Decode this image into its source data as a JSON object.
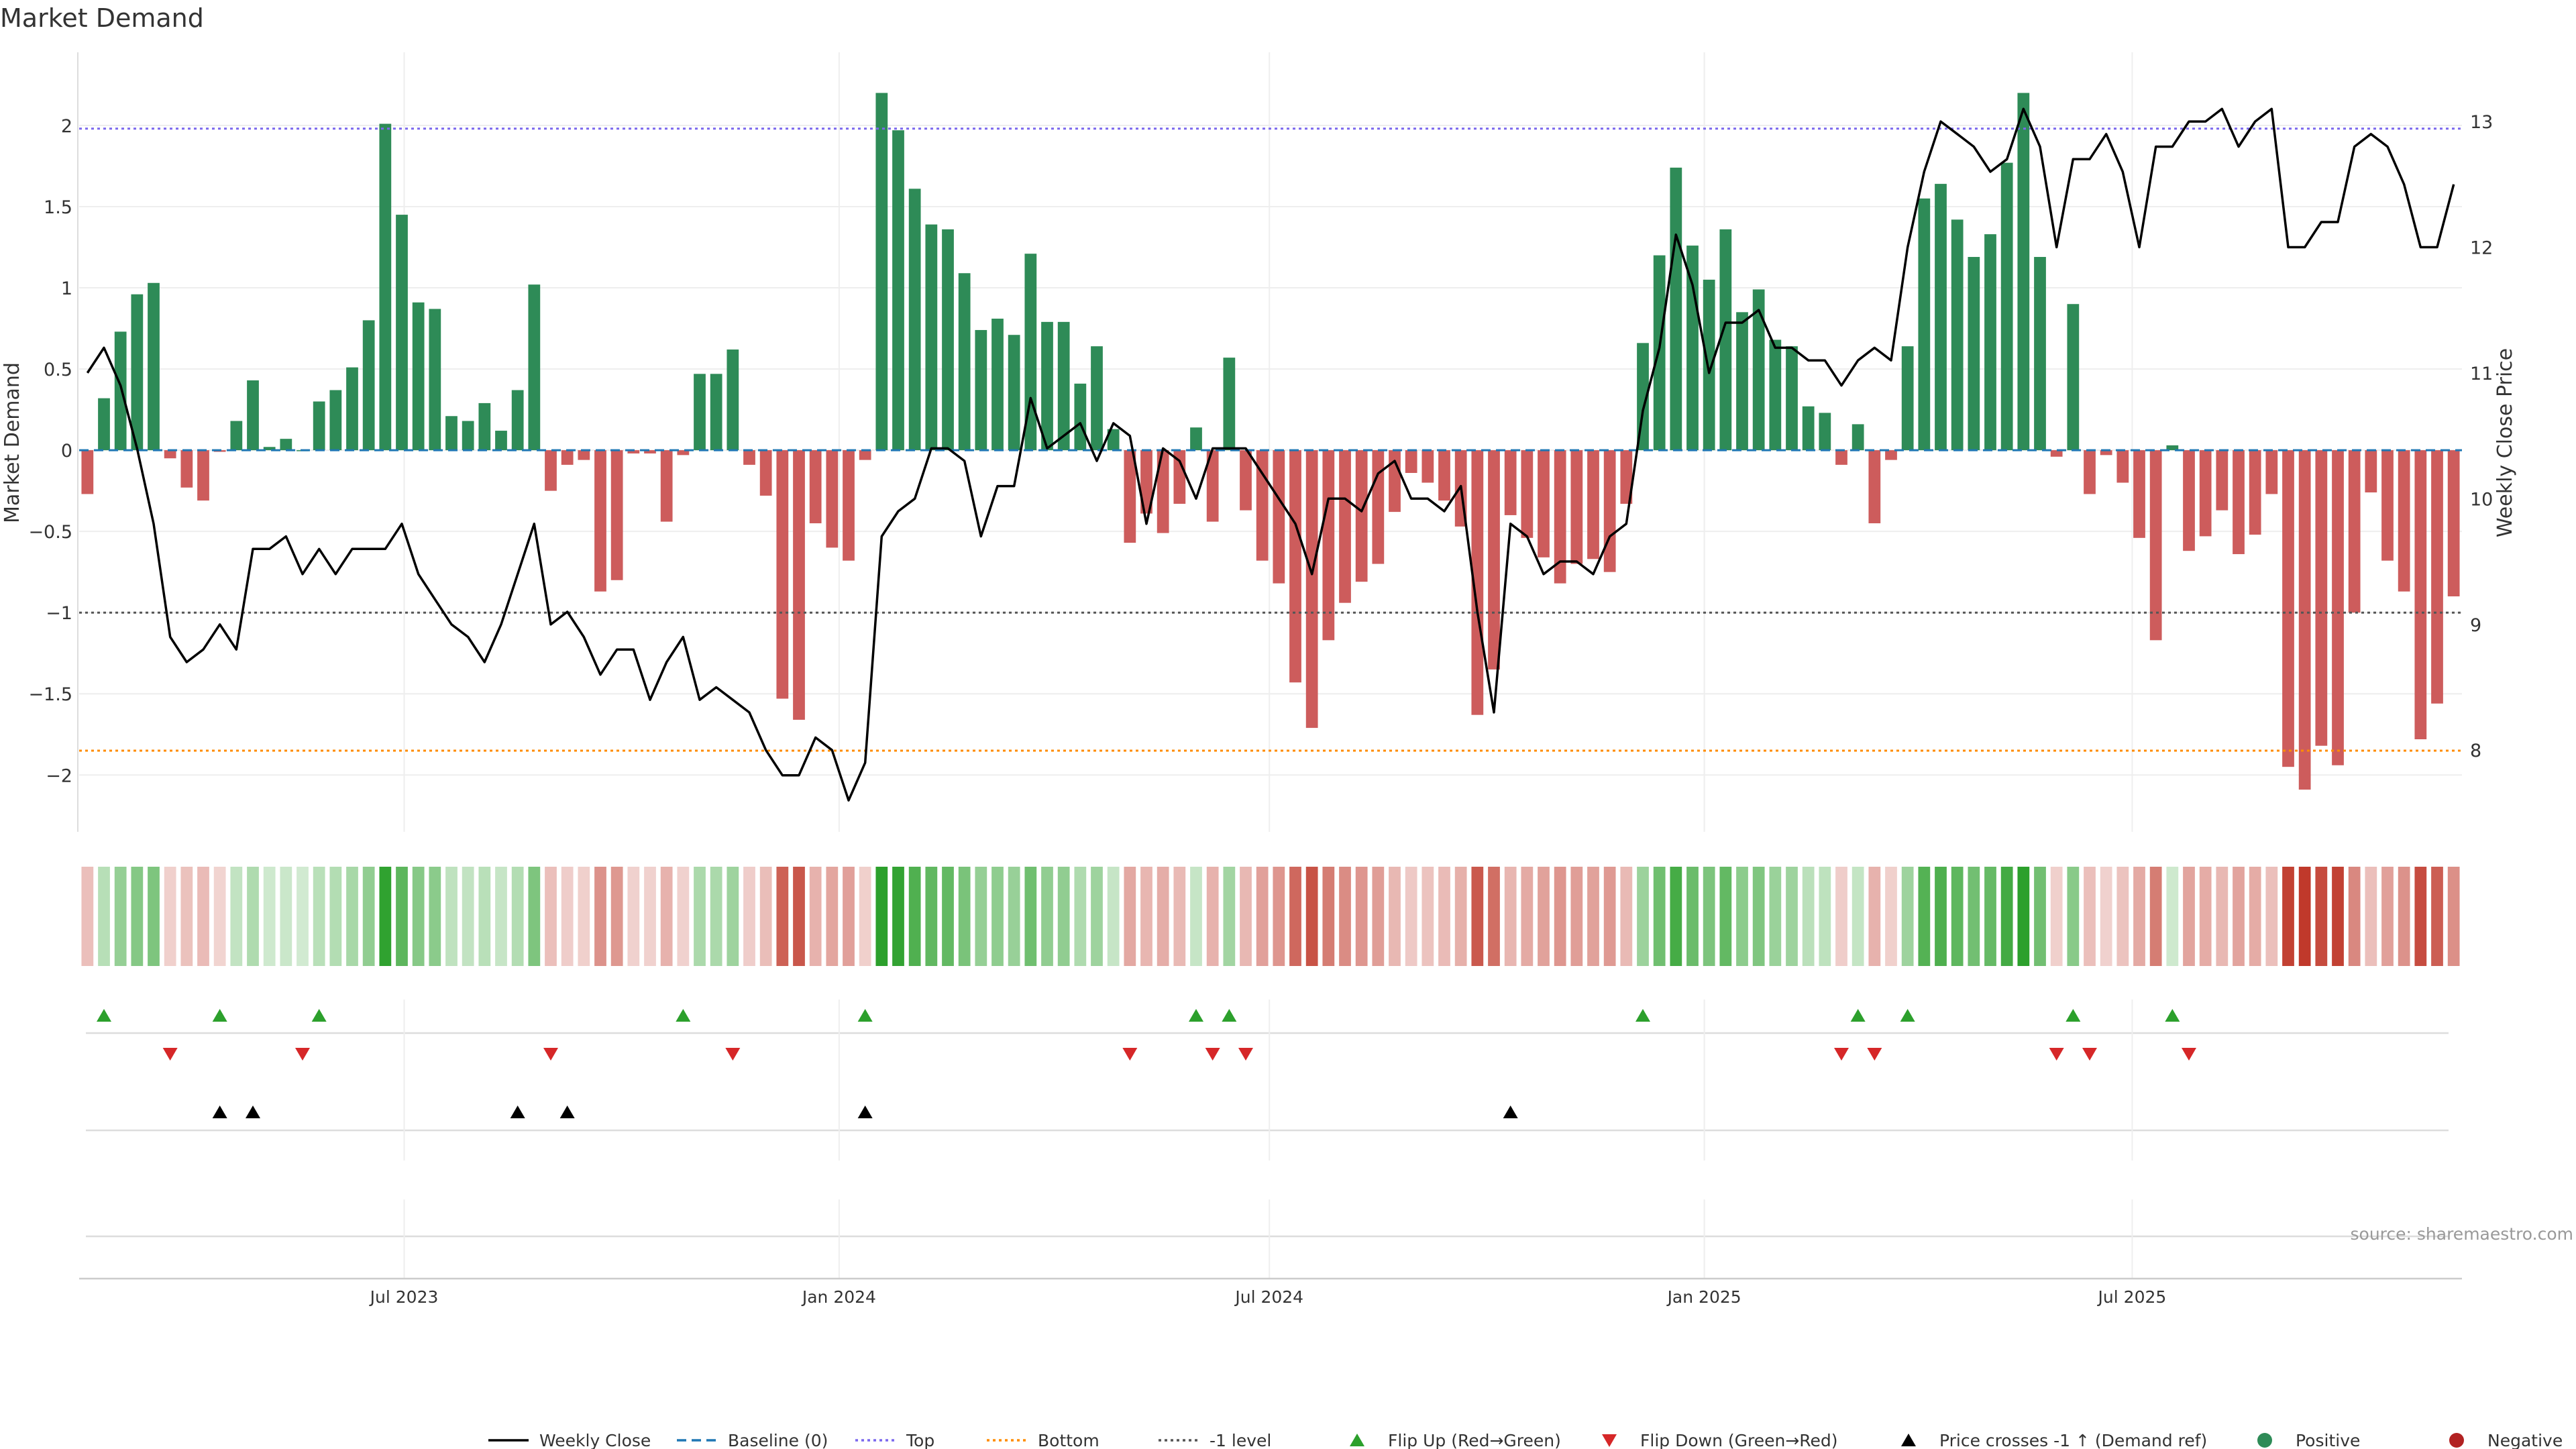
{
  "title": "Market Demand",
  "source": "source: sharemaestro.com",
  "colors": {
    "positive": "#2e8b57",
    "negative": "#cd5c5c",
    "price": "#000000",
    "baseline": "#1f77b4",
    "top": "#7b68ee",
    "bottom": "#ff8c00",
    "minus_one": "#555555",
    "flip_up": "#2ca02c",
    "flip_down": "#d62728",
    "cross": "#000000",
    "grid": "#eeeeee"
  },
  "chart_data": {
    "type": "bar",
    "x_start": "2023-02-17",
    "ylabel": "Market Demand",
    "y2label": "Weekly Close Price",
    "ylim": [
      -2.35,
      2.45
    ],
    "y2lim": [
      7.35,
      13.55
    ],
    "yticks": [
      2,
      1.5,
      1,
      0.5,
      0,
      -0.5,
      -1,
      -1.5,
      -2
    ],
    "ytick_labels": [
      "2",
      "1.5",
      "1",
      "0.5",
      "0",
      "−0.5",
      "−1",
      "−1.5",
      "−2"
    ],
    "y2ticks": [
      13,
      12,
      11,
      10,
      9,
      8
    ],
    "y2tick_labels": [
      "13",
      "12",
      "11",
      "10",
      "9",
      "8"
    ],
    "xticks": [
      {
        "label": "Jul 2023",
        "date": "2023-07-01"
      },
      {
        "label": "Jan 2024",
        "date": "2024-01-01"
      },
      {
        "label": "Jul 2024",
        "date": "2024-07-01"
      },
      {
        "label": "Jan 2025",
        "date": "2025-01-01"
      },
      {
        "label": "Jul 2025",
        "date": "2025-07-01"
      }
    ],
    "levels": {
      "top": 1.98,
      "bottom": -1.85,
      "minus_one": -1.0,
      "baseline": 0
    },
    "demand": [
      -0.27,
      0.32,
      0.73,
      0.96,
      1.03,
      -0.05,
      -0.23,
      -0.31,
      -0.01,
      0.18,
      0.43,
      0.02,
      0.07,
      0.0,
      0.3,
      0.37,
      0.51,
      0.8,
      2.01,
      1.45,
      0.91,
      0.87,
      0.21,
      0.18,
      0.29,
      0.12,
      0.37,
      1.02,
      -0.25,
      -0.09,
      -0.06,
      -0.87,
      -0.8,
      -0.02,
      -0.02,
      -0.44,
      -0.03,
      0.47,
      0.47,
      0.62,
      -0.09,
      -0.28,
      -1.53,
      -1.66,
      -0.45,
      -0.6,
      -0.68,
      -0.06,
      2.2,
      1.97,
      1.61,
      1.39,
      1.36,
      1.09,
      0.74,
      0.81,
      0.71,
      1.21,
      0.79,
      0.79,
      0.41,
      0.64,
      0.13,
      -0.57,
      -0.39,
      -0.51,
      -0.33,
      0.14,
      -0.44,
      0.57,
      -0.37,
      -0.68,
      -0.82,
      -1.43,
      -1.71,
      -1.17,
      -0.94,
      -0.81,
      -0.7,
      -0.38,
      -0.14,
      -0.2,
      -0.31,
      -0.47,
      -1.63,
      -1.35,
      -0.4,
      -0.54,
      -0.66,
      -0.82,
      -0.7,
      -0.67,
      -0.75,
      -0.33,
      0.66,
      1.2,
      1.74,
      1.26,
      1.05,
      1.36,
      0.85,
      0.99,
      0.68,
      0.64,
      0.27,
      0.23,
      -0.09,
      0.16,
      -0.45,
      -0.06,
      0.64,
      1.55,
      1.64,
      1.42,
      1.19,
      1.33,
      1.77,
      2.2,
      1.19,
      -0.04,
      0.9,
      -0.27,
      -0.03,
      -0.2,
      -0.54,
      -1.17,
      0.03,
      -0.62,
      -0.53,
      -0.37,
      -0.64,
      -0.52,
      -0.27,
      -1.95,
      -2.09,
      -1.82,
      -1.94,
      -1.0,
      -0.26,
      -0.68,
      -0.87,
      -1.78,
      -1.56,
      -0.9
    ],
    "price": [
      11.0,
      11.2,
      10.9,
      10.4,
      9.8,
      8.9,
      8.7,
      8.8,
      9.0,
      8.8,
      9.6,
      9.6,
      9.7,
      9.4,
      9.6,
      9.4,
      9.6,
      9.6,
      9.6,
      9.8,
      9.4,
      9.2,
      9.0,
      8.9,
      8.7,
      9.0,
      9.4,
      9.8,
      9.0,
      9.1,
      8.9,
      8.6,
      8.8,
      8.8,
      8.4,
      8.7,
      8.9,
      8.4,
      8.5,
      8.4,
      8.3,
      8.0,
      7.8,
      7.8,
      8.1,
      8.0,
      7.6,
      7.9,
      9.7,
      9.9,
      10.0,
      10.4,
      10.4,
      10.3,
      9.7,
      10.1,
      10.1,
      10.8,
      10.4,
      10.5,
      10.6,
      10.3,
      10.6,
      10.5,
      9.8,
      10.4,
      10.3,
      10.0,
      10.4,
      10.4,
      10.4,
      10.2,
      10.0,
      9.8,
      9.4,
      10.0,
      10.0,
      9.9,
      10.2,
      10.3,
      10.0,
      10.0,
      9.9,
      10.1,
      9.1,
      8.3,
      9.8,
      9.7,
      9.4,
      9.5,
      9.5,
      9.4,
      9.7,
      9.8,
      10.7,
      11.2,
      12.1,
      11.7,
      11.0,
      11.4,
      11.4,
      11.5,
      11.2,
      11.2,
      11.1,
      11.1,
      10.9,
      11.1,
      11.2,
      11.1,
      12.0,
      12.6,
      13.0,
      12.9,
      12.8,
      12.6,
      12.7,
      13.1,
      12.8,
      12.0,
      12.7,
      12.7,
      12.9,
      12.6,
      12.0,
      12.8,
      12.8,
      13.0,
      13.0,
      13.1,
      12.8,
      13.0,
      13.1,
      12.0,
      12.0,
      12.2,
      12.2,
      12.8,
      12.9,
      12.8,
      12.5,
      12.0,
      12.0,
      12.5
    ],
    "flip_up_weeks": [
      1,
      8,
      14,
      36,
      47,
      67,
      69,
      94,
      107,
      110,
      120,
      126
    ],
    "flip_down_weeks": [
      5,
      13,
      28,
      39,
      63,
      68,
      70,
      106,
      108,
      119,
      121,
      127
    ],
    "cross_weeks": [
      8,
      10,
      26,
      29,
      47,
      86
    ],
    "legend": [
      {
        "label": "Weekly Close",
        "kind": "line",
        "color": "#000000",
        "dash": ""
      },
      {
        "label": "Baseline (0)",
        "kind": "line",
        "color": "#1f77b4",
        "dash": "14 8"
      },
      {
        "label": "Top",
        "kind": "line",
        "color": "#7b68ee",
        "dash": "4 5"
      },
      {
        "label": "Bottom",
        "kind": "line",
        "color": "#ff8c00",
        "dash": "4 5"
      },
      {
        "label": "-1 level",
        "kind": "line",
        "color": "#555555",
        "dash": "4 5"
      },
      {
        "label": "Flip Up (Red→Green)",
        "kind": "tri-up",
        "color": "#2ca02c"
      },
      {
        "label": "Flip Down (Green→Red)",
        "kind": "tri-down",
        "color": "#d62728"
      },
      {
        "label": "Price crosses -1 ↑ (Demand ref)",
        "kind": "tri-up",
        "color": "#000000"
      },
      {
        "label": "Positive",
        "kind": "dot",
        "color": "#2e8b57"
      },
      {
        "label": "Negative",
        "kind": "dot",
        "color": "#b22222"
      }
    ]
  }
}
